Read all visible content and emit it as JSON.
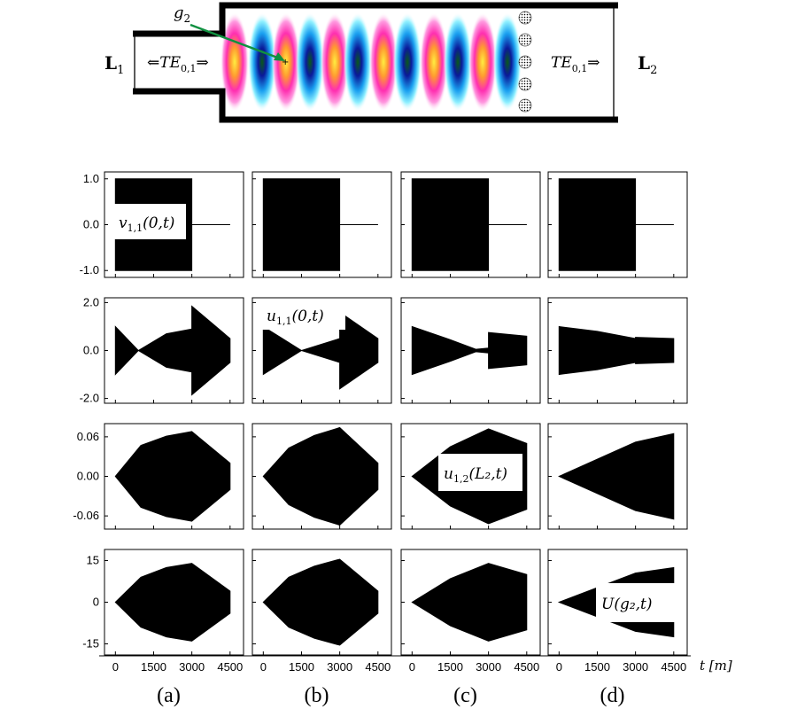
{
  "diagram": {
    "left_port": "L",
    "left_port_sub": "1",
    "right_port": "L",
    "right_port_sub": "2",
    "left_mode": "⇐TE",
    "left_mode_sub": "0,1",
    "left_mode_arrow": "⇒",
    "right_mode": "TE",
    "right_mode_sub": "0,1",
    "right_mode_arrow": "⇒",
    "probe": "g",
    "probe_sub": "2"
  },
  "rows": [
    {
      "yticks": [
        1.0,
        0.0,
        -1.0
      ],
      "ytick_labels": [
        "1.0",
        "0.0",
        "-1.0"
      ],
      "ylim": [
        -1.15,
        1.15
      ],
      "label": {
        "name": "v",
        "sub": "1,1",
        "arg": "(0,t)",
        "panel": 0
      }
    },
    {
      "yticks": [
        2.0,
        0.0,
        -2.0
      ],
      "ytick_labels": [
        "2.0",
        "0.0",
        "-2.0"
      ],
      "ylim": [
        -2.2,
        2.2
      ],
      "label": {
        "name": "u",
        "sub": "1,1",
        "arg": "(0,t)",
        "panel": 1
      }
    },
    {
      "yticks": [
        0.06,
        0.0,
        -0.06
      ],
      "ytick_labels": [
        "0.06",
        "0.00",
        "-0.06"
      ],
      "ylim": [
        -0.08,
        0.08
      ],
      "label": {
        "name": "u",
        "sub": "1,2",
        "arg": "(L₂,t)",
        "panel": 2
      }
    },
    {
      "yticks": [
        15,
        0,
        -15
      ],
      "ytick_labels": [
        "15",
        "0",
        "-15"
      ],
      "ylim": [
        -19,
        19
      ],
      "label": {
        "name": "U",
        "sub": "",
        "arg": "(g₂,t)",
        "panel": 3
      }
    }
  ],
  "x_axis": {
    "ticks": [
      0,
      1500,
      3000,
      4500
    ],
    "tick_labels": [
      "0",
      "1500",
      "3000",
      "4500"
    ],
    "xlim": [
      -150,
      4750
    ],
    "unit_label": "t [m]"
  },
  "columns": [
    "(a)",
    "(b)",
    "(c)",
    "(d)"
  ],
  "chart_data": [
    {
      "type": "area",
      "row": 0,
      "col": 0,
      "x": [
        0,
        3000,
        3000,
        4500
      ],
      "upper": [
        1.0,
        1.0,
        0.0,
        0.0
      ],
      "lower": [
        -1.0,
        -1.0,
        0.0,
        0.0
      ]
    },
    {
      "type": "area",
      "row": 0,
      "col": 1,
      "x": [
        0,
        3000,
        3000,
        4500
      ],
      "upper": [
        1.0,
        1.0,
        0.0,
        0.0
      ],
      "lower": [
        -1.0,
        -1.0,
        0.0,
        0.0
      ]
    },
    {
      "type": "area",
      "row": 0,
      "col": 2,
      "x": [
        0,
        3000,
        3000,
        4500
      ],
      "upper": [
        1.0,
        1.0,
        0.0,
        0.0
      ],
      "lower": [
        -1.0,
        -1.0,
        0.0,
        0.0
      ]
    },
    {
      "type": "area",
      "row": 0,
      "col": 3,
      "x": [
        0,
        3000,
        3000,
        4500
      ],
      "upper": [
        1.0,
        1.0,
        0.0,
        0.0
      ],
      "lower": [
        -1.0,
        -1.0,
        0.0,
        0.0
      ]
    },
    {
      "type": "area",
      "row": 1,
      "col": 0,
      "x": [
        0,
        900,
        2000,
        3000,
        3000,
        4500
      ],
      "upper": [
        1.0,
        0.0,
        0.7,
        0.9,
        1.85,
        0.5
      ],
      "lower": [
        -1.0,
        0.0,
        -0.7,
        -0.9,
        -1.85,
        -0.5
      ]
    },
    {
      "type": "area",
      "row": 1,
      "col": 1,
      "x": [
        0,
        1500,
        3000,
        3000,
        4500
      ],
      "upper": [
        1.0,
        0.0,
        0.5,
        1.6,
        0.5
      ],
      "lower": [
        -1.0,
        0.0,
        -0.5,
        -1.6,
        -0.5
      ]
    },
    {
      "type": "area",
      "row": 1,
      "col": 2,
      "x": [
        0,
        1500,
        2500,
        3000,
        3000,
        4500
      ],
      "upper": [
        1.0,
        0.45,
        0.05,
        0.1,
        0.75,
        0.6
      ],
      "lower": [
        -1.0,
        -0.45,
        -0.05,
        -0.1,
        -0.75,
        -0.6
      ]
    },
    {
      "type": "area",
      "row": 1,
      "col": 3,
      "x": [
        0,
        1500,
        3000,
        3000,
        4500
      ],
      "upper": [
        1.0,
        0.8,
        0.5,
        0.55,
        0.5
      ],
      "lower": [
        -1.0,
        -0.8,
        -0.5,
        -0.55,
        -0.5
      ]
    },
    {
      "type": "area",
      "row": 2,
      "col": 0,
      "x": [
        0,
        1000,
        2000,
        3000,
        4500
      ],
      "upper": [
        0.0,
        0.047,
        0.061,
        0.068,
        0.02
      ],
      "lower": [
        0.0,
        -0.047,
        -0.061,
        -0.068,
        -0.02
      ]
    },
    {
      "type": "area",
      "row": 2,
      "col": 1,
      "x": [
        0,
        1000,
        2000,
        3000,
        4500
      ],
      "upper": [
        0.0,
        0.043,
        0.062,
        0.074,
        0.02
      ],
      "lower": [
        0.0,
        -0.043,
        -0.062,
        -0.074,
        -0.02
      ]
    },
    {
      "type": "area",
      "row": 2,
      "col": 2,
      "x": [
        0,
        1500,
        3000,
        4500
      ],
      "upper": [
        0.0,
        0.045,
        0.072,
        0.05
      ],
      "lower": [
        0.0,
        -0.045,
        -0.072,
        -0.05
      ]
    },
    {
      "type": "area",
      "row": 2,
      "col": 3,
      "x": [
        0,
        3000,
        4500
      ],
      "upper": [
        0.0,
        0.052,
        0.065
      ],
      "lower": [
        0.0,
        -0.052,
        -0.065
      ]
    },
    {
      "type": "area",
      "row": 3,
      "col": 0,
      "x": [
        0,
        1000,
        2000,
        3000,
        4500
      ],
      "upper": [
        0,
        9,
        12.5,
        14,
        4
      ],
      "lower": [
        0,
        -9,
        -12.5,
        -14,
        -4
      ]
    },
    {
      "type": "area",
      "row": 3,
      "col": 1,
      "x": [
        0,
        1000,
        2000,
        3000,
        4500
      ],
      "upper": [
        0,
        9,
        13,
        15.5,
        4
      ],
      "lower": [
        0,
        -9,
        -13,
        -15.5,
        -4
      ]
    },
    {
      "type": "area",
      "row": 3,
      "col": 2,
      "x": [
        0,
        1500,
        3000,
        4500
      ],
      "upper": [
        0,
        8.5,
        14,
        10
      ],
      "lower": [
        0,
        -8.5,
        -14,
        -10
      ]
    },
    {
      "type": "area",
      "row": 3,
      "col": 3,
      "x": [
        0,
        3000,
        4500
      ],
      "upper": [
        0,
        10.5,
        12.5
      ],
      "lower": [
        0,
        -10.5,
        -12.5
      ]
    }
  ]
}
